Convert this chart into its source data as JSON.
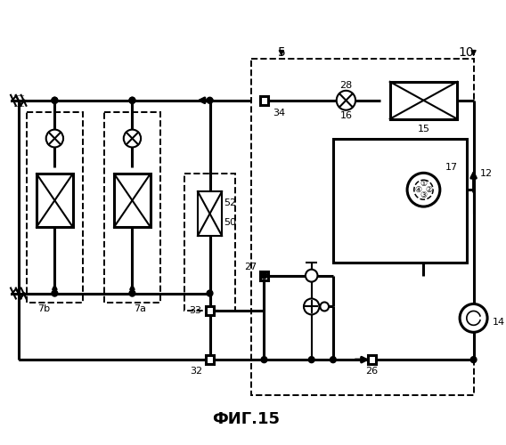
{
  "title": "ФИГ.15",
  "bg_color": "#ffffff",
  "fig_width": 5.68,
  "fig_height": 5.0,
  "dpi": 100
}
